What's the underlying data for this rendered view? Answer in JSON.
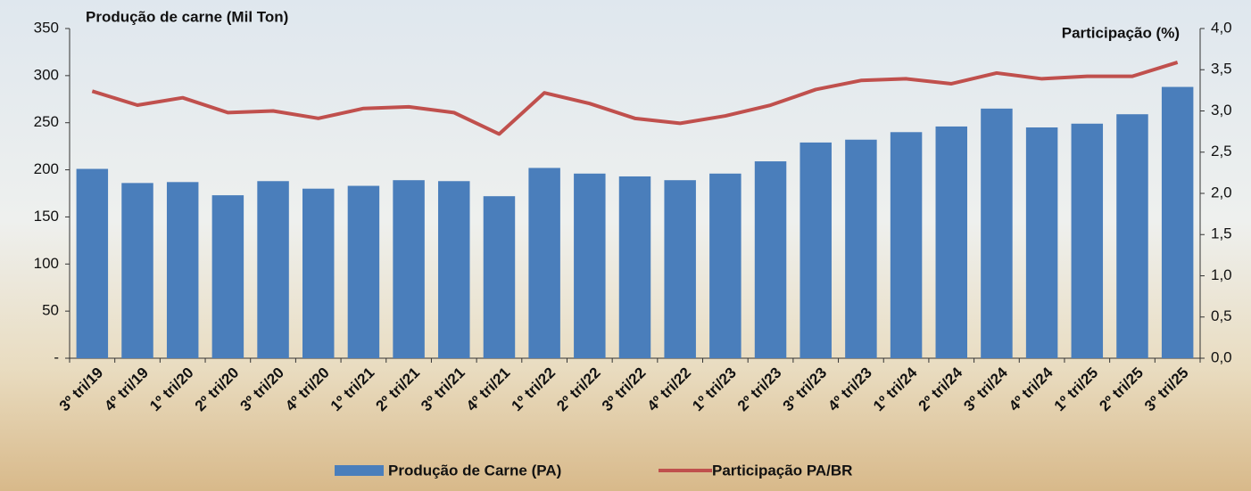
{
  "chart_data": {
    "type": "bar",
    "title": "Produção de carne (Mil Ton)",
    "y2_title": "Participação (%)",
    "categories": [
      "3º tri/19",
      "4º tri/19",
      "1º tri/20",
      "2º tri/20",
      "3º tri/20",
      "4º tri/20",
      "1º tri/21",
      "2º tri/21",
      "3º tri/21",
      "4º tri/21",
      "1º tri/22",
      "2º tri/22",
      "3º tri/22",
      "4º tri/22",
      "1º tri/23",
      "2º tri/23",
      "3º tri/23",
      "4º tri/23",
      "1º tri/24",
      "2º tri/24",
      "3º tri/24",
      "4º tri/24",
      "1º tri/25",
      "2º tri/25",
      "3º tri/25"
    ],
    "series": [
      {
        "name": "Produção de Carne (PA)",
        "type": "bar",
        "color": "#4a7ebb",
        "values": [
          201,
          186,
          187,
          173,
          188,
          180,
          183,
          189,
          188,
          172,
          202,
          196,
          193,
          189,
          196,
          209,
          229,
          232,
          240,
          246,
          265,
          245,
          249,
          259,
          288
        ]
      },
      {
        "name": "Participação PA/BR",
        "type": "line",
        "axis": "y2",
        "color": "#c0504d",
        "values": [
          3.24,
          3.07,
          3.16,
          2.98,
          3.0,
          2.91,
          3.03,
          3.05,
          2.98,
          2.72,
          3.22,
          3.09,
          2.91,
          2.85,
          2.94,
          3.07,
          3.26,
          3.37,
          3.39,
          3.33,
          3.46,
          3.39,
          3.42,
          3.42,
          3.59
        ]
      }
    ],
    "ylim": [
      0,
      350
    ],
    "yticks": [
      {
        "value": 0,
        "label": "-"
      },
      50,
      100,
      150,
      200,
      250,
      300,
      350
    ],
    "y2lim": [
      0,
      4
    ],
    "y2ticks": [
      {
        "value": 0,
        "label": "0,0"
      },
      {
        "value": 0.5,
        "label": "0,5"
      },
      {
        "value": 1,
        "label": "1,0"
      },
      {
        "value": 1.5,
        "label": "1,5"
      },
      {
        "value": 2,
        "label": "2,0"
      },
      {
        "value": 2.5,
        "label": "2,5"
      },
      {
        "value": 3,
        "label": "3,0"
      },
      {
        "value": 3.5,
        "label": "3,5"
      },
      {
        "value": 4,
        "label": "4,0"
      }
    ],
    "grid": false,
    "legend": "bottom"
  }
}
